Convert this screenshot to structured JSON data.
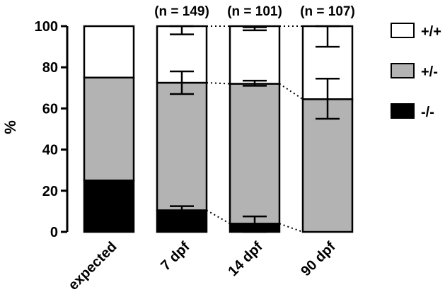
{
  "chart_data": {
    "type": "bar",
    "stacked": true,
    "title": "",
    "xlabel": "",
    "ylabel": "%",
    "ylim": [
      0,
      100
    ],
    "yticks": [
      "0",
      "20",
      "40",
      "60",
      "80",
      "100"
    ],
    "grid": false,
    "legend_position": "right",
    "categories": [
      "expected",
      "7 dpf",
      "14 dpf",
      "90 dpf"
    ],
    "n_labels": [
      "",
      "(n = 149)",
      "(n = 101)",
      "(n = 107)"
    ],
    "series": [
      {
        "name": "-/-",
        "color": "#000000",
        "values": [
          25,
          10.5,
          4,
          0
        ],
        "err_low": [
          null,
          8.5,
          0,
          null
        ],
        "err_high": [
          null,
          12.5,
          7.5,
          null
        ]
      },
      {
        "name": "+/-",
        "color": "#b3b3b3",
        "values": [
          50,
          62,
          68,
          64.5
        ],
        "err_low": [
          null,
          67,
          71,
          55
        ],
        "err_high": [
          null,
          78,
          73.5,
          74.5
        ]
      },
      {
        "name": "+/+",
        "color": "#ffffff",
        "values": [
          25,
          27.5,
          28,
          35.5
        ],
        "err_low": [
          null,
          96,
          98,
          90
        ],
        "err_high": [
          null,
          100,
          99.5,
          100
        ]
      }
    ],
    "connectors": true
  }
}
